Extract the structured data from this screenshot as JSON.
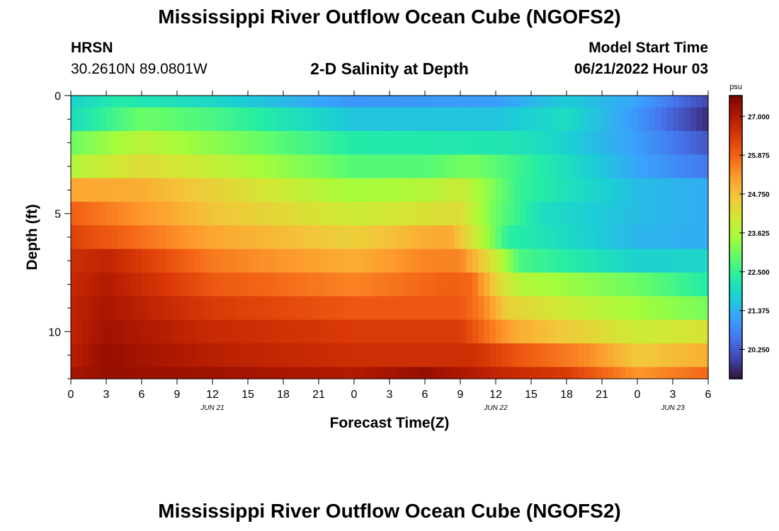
{
  "header": {
    "title": "Mississippi River Outflow Ocean Cube (NGOFS2)",
    "station": "HRSN",
    "coords": "30.2610N  89.0801W",
    "subtitle": "2-D Salinity at Depth",
    "start_label": "Model Start Time",
    "start_value": "06/21/2022 Hour 03"
  },
  "footer": {
    "title": "Mississippi River Outflow Ocean Cube (NGOFS2)"
  },
  "chart_data": {
    "type": "heatmap",
    "xlabel": "Forecast Time(Z)",
    "ylabel": "Depth (ft)",
    "x_range_hours": [
      0,
      54
    ],
    "y_range_ft": [
      0,
      12
    ],
    "x_ticks": [
      "0",
      "3",
      "6",
      "9",
      "12",
      "15",
      "18",
      "21",
      "0",
      "3",
      "6",
      "9",
      "12",
      "15",
      "18",
      "21",
      "0",
      "3",
      "6"
    ],
    "y_ticks": [
      {
        "value": 0,
        "label": "0"
      },
      {
        "value": 5,
        "label": "5"
      },
      {
        "value": 10,
        "label": "10"
      }
    ],
    "date_labels": [
      {
        "hour": 12,
        "label": "JUN 21"
      },
      {
        "hour": 36,
        "label": "JUN 22"
      },
      {
        "hour": 51,
        "label": "JUN 23"
      }
    ],
    "colorbar": {
      "unit": "psu",
      "min": 19.4,
      "max": 27.6,
      "ticks": [
        "27.000",
        "25.875",
        "24.750",
        "23.625",
        "22.500",
        "21.375",
        "20.250"
      ],
      "tick_values": [
        27.0,
        25.875,
        24.75,
        23.625,
        22.5,
        21.375,
        20.25
      ],
      "colors": [
        "#30123b",
        "#4145ab",
        "#4675ed",
        "#39a2fc",
        "#1bcfd4",
        "#24eca6",
        "#61fc6c",
        "#a4fc3b",
        "#d1e834",
        "#f3c63a",
        "#fe9b2d",
        "#f36315",
        "#d93806",
        "#b11901",
        "#7a0402"
      ]
    },
    "layers": [
      {
        "depth_ft": [
          0,
          0.5
        ],
        "keyframes": [
          [
            0,
            21.8
          ],
          [
            4,
            22.3
          ],
          [
            12,
            21.9
          ],
          [
            24,
            21.0
          ],
          [
            36,
            21.1
          ],
          [
            42,
            21.7
          ],
          [
            48,
            21.2
          ],
          [
            54,
            20.0
          ]
        ]
      },
      {
        "depth_ft": [
          0.5,
          1.5
        ],
        "keyframes": [
          [
            0,
            22.0
          ],
          [
            6,
            23.0
          ],
          [
            12,
            22.7
          ],
          [
            24,
            21.6
          ],
          [
            36,
            21.6
          ],
          [
            42,
            22.0
          ],
          [
            48,
            21.0
          ],
          [
            54,
            19.7
          ]
        ]
      },
      {
        "depth_ft": [
          1.5,
          2.5
        ],
        "keyframes": [
          [
            0,
            23.0
          ],
          [
            6,
            23.8
          ],
          [
            12,
            23.3
          ],
          [
            24,
            22.3
          ],
          [
            36,
            22.2
          ],
          [
            40,
            22.0
          ],
          [
            48,
            21.1
          ],
          [
            54,
            20.2
          ]
        ]
      },
      {
        "depth_ft": [
          2.5,
          3.5
        ],
        "keyframes": [
          [
            0,
            23.7
          ],
          [
            6,
            24.3
          ],
          [
            12,
            23.9
          ],
          [
            24,
            22.8
          ],
          [
            30,
            22.8
          ],
          [
            34,
            23.1
          ],
          [
            40,
            22.3
          ],
          [
            48,
            21.2
          ],
          [
            54,
            20.6
          ]
        ]
      },
      {
        "depth_ft": [
          3.5,
          4.5
        ],
        "keyframes": [
          [
            0,
            25.1
          ],
          [
            6,
            25.0
          ],
          [
            12,
            24.5
          ],
          [
            24,
            23.5
          ],
          [
            30,
            23.7
          ],
          [
            33,
            24.0
          ],
          [
            38,
            22.5
          ],
          [
            48,
            21.5
          ],
          [
            54,
            21.3
          ]
        ]
      },
      {
        "depth_ft": [
          4.5,
          5.5
        ],
        "keyframes": [
          [
            0,
            25.9
          ],
          [
            6,
            25.3
          ],
          [
            12,
            24.7
          ],
          [
            24,
            24.0
          ],
          [
            30,
            24.2
          ],
          [
            33,
            24.3
          ],
          [
            36,
            23.0
          ],
          [
            40,
            22.0
          ],
          [
            48,
            21.5
          ],
          [
            54,
            21.3
          ]
        ]
      },
      {
        "depth_ft": [
          5.5,
          6.5
        ],
        "keyframes": [
          [
            0,
            26.3
          ],
          [
            6,
            25.7
          ],
          [
            12,
            25.1
          ],
          [
            24,
            24.5
          ],
          [
            30,
            25.0
          ],
          [
            32,
            25.1
          ],
          [
            34,
            24.2
          ],
          [
            37,
            22.4
          ],
          [
            48,
            21.4
          ],
          [
            54,
            21.3
          ]
        ]
      },
      {
        "depth_ft": [
          6.5,
          7.5
        ],
        "keyframes": [
          [
            0,
            26.6
          ],
          [
            3,
            26.8
          ],
          [
            12,
            25.6
          ],
          [
            24,
            25.0
          ],
          [
            30,
            25.5
          ],
          [
            33,
            25.5
          ],
          [
            36,
            24.0
          ],
          [
            38,
            22.7
          ],
          [
            48,
            21.8
          ],
          [
            54,
            21.9
          ]
        ]
      },
      {
        "depth_ft": [
          7.5,
          8.5
        ],
        "keyframes": [
          [
            0,
            26.7
          ],
          [
            3,
            27.0
          ],
          [
            12,
            26.0
          ],
          [
            24,
            25.5
          ],
          [
            32,
            25.9
          ],
          [
            34,
            25.8
          ],
          [
            36,
            24.5
          ],
          [
            38,
            23.7
          ],
          [
            48,
            23.0
          ],
          [
            54,
            22.3
          ]
        ]
      },
      {
        "depth_ft": [
          8.5,
          9.5
        ],
        "keyframes": [
          [
            0,
            26.8
          ],
          [
            3,
            27.1
          ],
          [
            12,
            26.4
          ],
          [
            24,
            26.0
          ],
          [
            33,
            26.0
          ],
          [
            35,
            25.5
          ],
          [
            37,
            24.5
          ],
          [
            42,
            24.0
          ],
          [
            48,
            23.5
          ],
          [
            54,
            23.1
          ]
        ]
      },
      {
        "depth_ft": [
          9.5,
          10.5
        ],
        "keyframes": [
          [
            0,
            26.8
          ],
          [
            3,
            27.2
          ],
          [
            12,
            26.7
          ],
          [
            24,
            26.4
          ],
          [
            33,
            26.4
          ],
          [
            36,
            25.5
          ],
          [
            38,
            25.0
          ],
          [
            44,
            24.4
          ],
          [
            48,
            24.0
          ],
          [
            54,
            24.2
          ]
        ]
      },
      {
        "depth_ft": [
          10.5,
          11.5
        ],
        "keyframes": [
          [
            0,
            26.9
          ],
          [
            3,
            27.3
          ],
          [
            12,
            26.9
          ],
          [
            24,
            26.6
          ],
          [
            34,
            26.6
          ],
          [
            38,
            26.0
          ],
          [
            44,
            25.4
          ],
          [
            48,
            24.6
          ],
          [
            54,
            25.0
          ]
        ]
      },
      {
        "depth_ft": [
          11.5,
          12
        ],
        "keyframes": [
          [
            0,
            27.1
          ],
          [
            3,
            27.3
          ],
          [
            12,
            27.2
          ],
          [
            24,
            27.0
          ],
          [
            30,
            27.3
          ],
          [
            36,
            26.8
          ],
          [
            42,
            26.4
          ],
          [
            48,
            25.3
          ],
          [
            54,
            25.8
          ]
        ]
      }
    ]
  }
}
